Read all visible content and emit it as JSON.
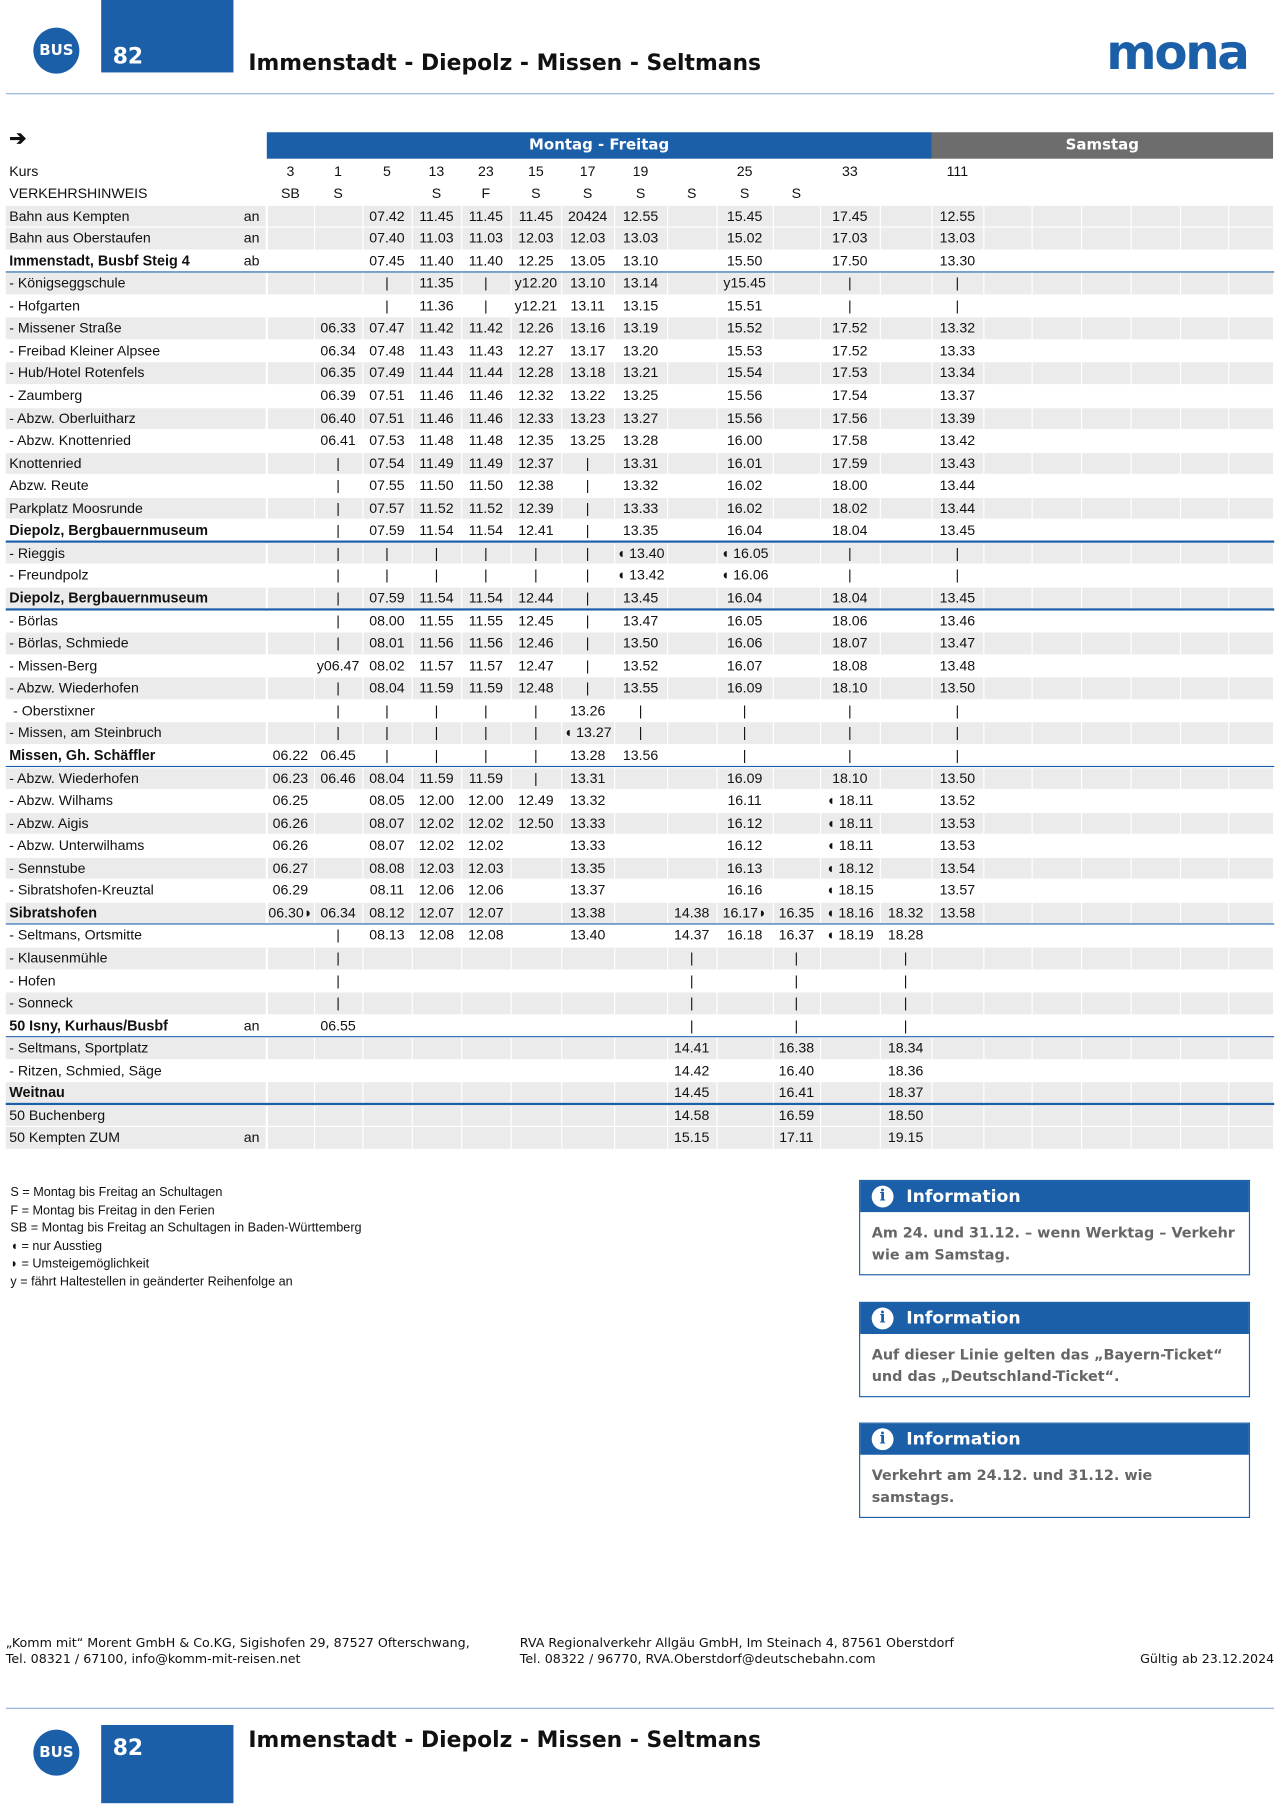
{
  "header": {
    "badge": "BUS",
    "line": "82",
    "title": "Immenstadt - Diepolz - Missen - Seltmans",
    "logo": "mona"
  },
  "timetable": {
    "arrow": "➔",
    "periods": [
      "Montag - Freitag",
      "Samstag"
    ],
    "kurs_label": "Kurs",
    "kurs": [
      "3",
      "1",
      "5",
      "13",
      "23",
      "15",
      "17",
      "19",
      null,
      "25",
      null,
      "33",
      null,
      "111"
    ],
    "hinweis_label": "VERKEHRSHINWEIS",
    "hinweis": [
      "SB",
      "S",
      null,
      "S",
      "F",
      "S",
      "S",
      "S",
      "S",
      "S",
      "S",
      null,
      null,
      null
    ],
    "rows": [
      {
        "stop": "Bahn aus Kempten",
        "note": "an",
        "times": [
          null,
          null,
          "07.42",
          "11.45",
          "11.45",
          "11.45",
          "20424",
          "12.55",
          null,
          "15.45",
          null,
          "17.45",
          null,
          "12.55"
        ]
      },
      {
        "stop": "Bahn aus Oberstaufen",
        "note": "an",
        "times": [
          null,
          null,
          "07.40",
          "11.03",
          "11.03",
          "12.03",
          "12.03",
          "13.03",
          null,
          "15.02",
          null,
          "17.03",
          null,
          "13.03"
        ]
      },
      {
        "stop": "Immenstadt, Busbf Steig 4",
        "note": "ab",
        "times": [
          null,
          null,
          "07.45",
          "11.40",
          "11.40",
          "12.25",
          "13.05",
          "13.10",
          null,
          "15.50",
          null,
          "17.50",
          null,
          "13.30"
        ]
      },
      {
        "stop": "- Königseggschule",
        "times": [
          null,
          null,
          "|",
          "11.35",
          "|",
          "y12.20",
          "13.10",
          "13.14",
          null,
          "y15.45",
          null,
          "|",
          null,
          "|"
        ]
      },
      {
        "stop": "- Hofgarten",
        "times": [
          null,
          null,
          "|",
          "11.36",
          "|",
          "y12.21",
          "13.11",
          "13.15",
          null,
          "15.51",
          null,
          "|",
          null,
          "|"
        ]
      },
      {
        "stop": "- Missener Straße",
        "times": [
          null,
          "06.33",
          "07.47",
          "11.42",
          "11.42",
          "12.26",
          "13.16",
          "13.19",
          null,
          "15.52",
          null,
          "17.52",
          null,
          "13.32"
        ]
      },
      {
        "stop": "- Freibad Kleiner Alpsee",
        "times": [
          null,
          "06.34",
          "07.48",
          "11.43",
          "11.43",
          "12.27",
          "13.17",
          "13.20",
          null,
          "15.53",
          null,
          "17.52",
          null,
          "13.33"
        ]
      },
      {
        "stop": "- Hub/Hotel Rotenfels",
        "times": [
          null,
          "06.35",
          "07.49",
          "11.44",
          "11.44",
          "12.28",
          "13.18",
          "13.21",
          null,
          "15.54",
          null,
          "17.53",
          null,
          "13.34"
        ]
      },
      {
        "stop": "- Zaumberg",
        "times": [
          null,
          "06.39",
          "07.51",
          "11.46",
          "11.46",
          "12.32",
          "13.22",
          "13.25",
          null,
          "15.56",
          null,
          "17.54",
          null,
          "13.37"
        ]
      },
      {
        "stop": "- Abzw. Oberluitharz",
        "times": [
          null,
          "06.40",
          "07.51",
          "11.46",
          "11.46",
          "12.33",
          "13.23",
          "13.27",
          null,
          "15.56",
          null,
          "17.56",
          null,
          "13.39"
        ]
      },
      {
        "stop": "- Abzw. Knottenried",
        "times": [
          null,
          "06.41",
          "07.53",
          "11.48",
          "11.48",
          "12.35",
          "13.25",
          "13.28",
          null,
          "16.00",
          null,
          "17.58",
          null,
          "13.42"
        ]
      },
      {
        "stop": "Knottenried",
        "times": [
          null,
          "|",
          "07.54",
          "11.49",
          "11.49",
          "12.37",
          "|",
          "13.31",
          null,
          "16.01",
          null,
          "17.59",
          null,
          "13.43"
        ]
      },
      {
        "stop": "Abzw. Reute",
        "times": [
          null,
          "|",
          "07.55",
          "11.50",
          "11.50",
          "12.38",
          "|",
          "13.32",
          null,
          "16.02",
          null,
          "18.00",
          null,
          "13.44"
        ]
      },
      {
        "stop": "Parkplatz Moosrunde",
        "times": [
          null,
          "|",
          "07.57",
          "11.52",
          "11.52",
          "12.39",
          "|",
          "13.33",
          null,
          "16.02",
          null,
          "18.02",
          null,
          "13.44"
        ]
      },
      {
        "stop": "Diepolz, Bergbauernmuseum",
        "times": [
          null,
          "|",
          "07.59",
          "11.54",
          "11.54",
          "12.41",
          "|",
          "13.35",
          null,
          "16.04",
          null,
          "18.04",
          null,
          "13.45"
        ]
      },
      {
        "stop": "- Rieggis",
        "times": [
          null,
          "|",
          "|",
          "|",
          "|",
          "|",
          "|",
          "◖ 13.40",
          null,
          "◖ 16.05",
          null,
          "|",
          null,
          "|"
        ]
      },
      {
        "stop": "- Freundpolz",
        "times": [
          null,
          "|",
          "|",
          "|",
          "|",
          "|",
          "|",
          "◖ 13.42",
          null,
          "◖ 16.06",
          null,
          "|",
          null,
          "|"
        ]
      },
      {
        "stop": "Diepolz, Bergbauernmuseum",
        "times": [
          null,
          "|",
          "07.59",
          "11.54",
          "11.54",
          "12.44",
          "|",
          "13.45",
          null,
          "16.04",
          null,
          "18.04",
          null,
          "13.45"
        ]
      },
      {
        "stop": "- Börlas",
        "times": [
          null,
          "|",
          "08.00",
          "11.55",
          "11.55",
          "12.45",
          "|",
          "13.47",
          null,
          "16.05",
          null,
          "18.06",
          null,
          "13.46"
        ]
      },
      {
        "stop": "- Börlas, Schmiede",
        "times": [
          null,
          "|",
          "08.01",
          "11.56",
          "11.56",
          "12.46",
          "|",
          "13.50",
          null,
          "16.06",
          null,
          "18.07",
          null,
          "13.47"
        ]
      },
      {
        "stop": "- Missen-Berg",
        "times": [
          null,
          "y06.47",
          "08.02",
          "11.57",
          "11.57",
          "12.47",
          "|",
          "13.52",
          null,
          "16.07",
          null,
          "18.08",
          null,
          "13.48"
        ]
      },
      {
        "stop": "- Abzw. Wiederhofen",
        "times": [
          null,
          "|",
          "08.04",
          "11.59",
          "11.59",
          "12.48",
          "|",
          "13.55",
          null,
          "16.09",
          null,
          "18.10",
          null,
          "13.50"
        ]
      },
      {
        "stop": " - Oberstixner",
        "times": [
          null,
          "|",
          "|",
          "|",
          "|",
          "|",
          "13.26",
          "|",
          null,
          "|",
          null,
          "|",
          null,
          "|"
        ]
      },
      {
        "stop": "- Missen, am Steinbruch",
        "times": [
          null,
          "|",
          "|",
          "|",
          "|",
          "|",
          "◖ 13.27",
          "|",
          null,
          "|",
          null,
          "|",
          null,
          "|"
        ]
      },
      {
        "stop": "Missen, Gh. Schäffler",
        "times": [
          "06.22",
          "06.45",
          "|",
          "|",
          "|",
          "|",
          "13.28",
          "13.56",
          null,
          "|",
          null,
          "|",
          null,
          "|"
        ]
      },
      {
        "stop": "- Abzw. Wiederhofen",
        "times": [
          "06.23",
          "06.46",
          "08.04",
          "11.59",
          "11.59",
          "|",
          "13.31",
          null,
          null,
          "16.09",
          null,
          "18.10",
          null,
          "13.50"
        ]
      },
      {
        "stop": "- Abzw. Wilhams",
        "times": [
          "06.25",
          null,
          "08.05",
          "12.00",
          "12.00",
          "12.49",
          "13.32",
          null,
          null,
          "16.11",
          null,
          "◖ 18.11",
          null,
          "13.52"
        ]
      },
      {
        "stop": "- Abzw. Aigis",
        "times": [
          "06.26",
          null,
          "08.07",
          "12.02",
          "12.02",
          "12.50",
          "13.33",
          null,
          null,
          "16.12",
          null,
          "◖ 18.11",
          null,
          "13.53"
        ]
      },
      {
        "stop": "- Abzw. Unterwilhams",
        "times": [
          "06.26",
          null,
          "08.07",
          "12.02",
          "12.02",
          null,
          "13.33",
          null,
          null,
          "16.12",
          null,
          "◖ 18.11",
          null,
          "13.53"
        ]
      },
      {
        "stop": "- Sennstube",
        "times": [
          "06.27",
          null,
          "08.08",
          "12.03",
          "12.03",
          null,
          "13.35",
          null,
          null,
          "16.13",
          null,
          "◖ 18.12",
          null,
          "13.54"
        ]
      },
      {
        "stop": "- Sibratshofen-Kreuztal",
        "times": [
          "06.29",
          null,
          "08.11",
          "12.06",
          "12.06",
          null,
          "13.37",
          null,
          null,
          "16.16",
          null,
          "◖ 18.15",
          null,
          "13.57"
        ]
      },
      {
        "stop": "Sibratshofen",
        "times": [
          "06.30◗",
          "06.34",
          "08.12",
          "12.07",
          "12.07",
          null,
          "13.38",
          null,
          "14.38",
          "16.17◗",
          "16.35",
          "◖ 18.16",
          "18.32",
          "13.58"
        ]
      },
      {
        "stop": "- Seltmans, Ortsmitte",
        "times": [
          null,
          "|",
          "08.13",
          "12.08",
          "12.08",
          null,
          "13.40",
          null,
          "14.37",
          "16.18",
          "16.37",
          "◖ 18.19",
          "18.28",
          null
        ]
      },
      {
        "stop": "- Klausenmühle",
        "times": [
          null,
          "|",
          null,
          null,
          null,
          null,
          null,
          null,
          "|",
          null,
          "|",
          null,
          "|",
          null
        ]
      },
      {
        "stop": "- Hofen",
        "times": [
          null,
          "|",
          null,
          null,
          null,
          null,
          null,
          null,
          "|",
          null,
          "|",
          null,
          "|",
          null
        ]
      },
      {
        "stop": "- Sonneck",
        "times": [
          null,
          "|",
          null,
          null,
          null,
          null,
          null,
          null,
          "|",
          null,
          "|",
          null,
          "|",
          null
        ]
      },
      {
        "stop": "50 Isny, Kurhaus/Busbf",
        "note": "an",
        "times": [
          null,
          "06.55",
          null,
          null,
          null,
          null,
          null,
          null,
          "|",
          null,
          "|",
          null,
          "|",
          null
        ]
      },
      {
        "stop": "- Seltmans, Sportplatz",
        "times": [
          null,
          null,
          null,
          null,
          null,
          null,
          null,
          null,
          "14.41",
          null,
          "16.38",
          null,
          "18.34",
          null
        ]
      },
      {
        "stop": "- Ritzen, Schmied, Säge",
        "times": [
          null,
          null,
          null,
          null,
          null,
          null,
          null,
          null,
          "14.42",
          null,
          "16.40",
          null,
          "18.36",
          null
        ]
      },
      {
        "stop": "Weitnau",
        "times": [
          null,
          null,
          null,
          null,
          null,
          null,
          null,
          null,
          "14.45",
          null,
          "16.41",
          null,
          "18.37",
          null
        ]
      },
      {
        "stop": "50 Buchenberg",
        "times": [
          null,
          null,
          null,
          null,
          null,
          null,
          null,
          null,
          "14.58",
          null,
          "16.59",
          null,
          "18.50",
          null
        ]
      },
      {
        "stop": "50 Kempten ZUM",
        "note": "an",
        "times": [
          null,
          null,
          null,
          null,
          null,
          null,
          null,
          null,
          "15.15",
          null,
          "17.11",
          null,
          "19.15",
          null
        ]
      }
    ]
  },
  "legend": [
    "S = Montag bis Freitag an Schultagen",
    "F = Montag bis Freitag in den Ferien",
    "SB = Montag bis Freitag an Schultagen in Baden-Württemberg",
    "◖  = nur Ausstieg",
    "◗ = Umsteigemöglichkeit",
    "y = fährt Haltestellen in geänderter Reihenfolge an"
  ],
  "info": [
    {
      "title": "Information",
      "text": "Am 24. und 31.12. – wenn Werktag – Verkehr wie am Samstag."
    },
    {
      "title": "Information",
      "text": "Auf dieser Linie gelten das „Bayern-Ticket“ und das „Deutschland-Ticket“."
    },
    {
      "title": "Information",
      "text": "Verkehrt am 24.12. und 31.12. wie samstags."
    }
  ],
  "footer": {
    "left": [
      "„Komm mit“ Morent GmbH & Co.KG, Sigishofen 29, 87527 Ofterschwang,",
      "Tel. 08321 / 67100, info@komm-mit-reisen.net"
    ],
    "middle": [
      "RVA Regionalverkehr Allgäu GmbH, Im Steinach 4, 87561 Oberstdorf",
      "Tel. 08322 / 96770, RVA.Oberstdorf@deutschebahn.com"
    ],
    "valid": "Gültig ab 23.12.2024"
  },
  "bottom": {
    "badge": "BUS",
    "line": "82",
    "title": "Immenstadt - Diepolz - Missen - Seltmans"
  }
}
